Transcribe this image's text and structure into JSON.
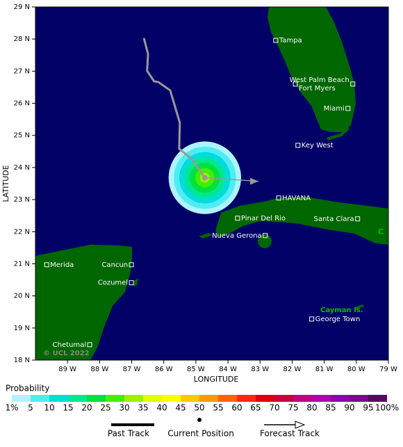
{
  "map": {
    "xlabel": "LONGITUDE",
    "ylabel": "LATITUDE",
    "xlim": [
      -90,
      -79
    ],
    "ylim": [
      18,
      29
    ],
    "xticks": [
      {
        "value": -89,
        "label": "89 W"
      },
      {
        "value": -88,
        "label": "88 W"
      },
      {
        "value": -87,
        "label": "87 W"
      },
      {
        "value": -86,
        "label": "86 W"
      },
      {
        "value": -85,
        "label": "85 W"
      },
      {
        "value": -84,
        "label": "84 W"
      },
      {
        "value": -83,
        "label": "83 W"
      },
      {
        "value": -82,
        "label": "82 W"
      },
      {
        "value": -81,
        "label": "81 W"
      },
      {
        "value": -80,
        "label": "80 W"
      },
      {
        "value": -79,
        "label": "79 W"
      }
    ],
    "yticks": [
      {
        "value": 18,
        "label": "18 N"
      },
      {
        "value": 19,
        "label": "19 N"
      },
      {
        "value": 20,
        "label": "20 N"
      },
      {
        "value": 21,
        "label": "21 N"
      },
      {
        "value": 22,
        "label": "22 N"
      },
      {
        "value": 23,
        "label": "23 N"
      },
      {
        "value": 24,
        "label": "24 N"
      },
      {
        "value": 25,
        "label": "25 N"
      },
      {
        "value": 26,
        "label": "26 N"
      },
      {
        "value": 27,
        "label": "27 N"
      },
      {
        "value": 28,
        "label": "28 N"
      },
      {
        "value": 29,
        "label": "29 N"
      }
    ],
    "cities": [
      {
        "name": "Tampa",
        "lon": -82.51,
        "lat": 27.96
      },
      {
        "name": "West Palm Beach",
        "lon": -80.11,
        "lat": 26.6
      },
      {
        "name": "Fort Myers",
        "lon": -81.9,
        "lat": 26.6
      },
      {
        "name": "Miami",
        "lon": -80.26,
        "lat": 25.84
      },
      {
        "name": "Key West",
        "lon": -81.82,
        "lat": 24.69
      },
      {
        "name": "HAVANA",
        "lon": -82.42,
        "lat": 23.05
      },
      {
        "name": "Pinar Del Rio",
        "lon": -83.7,
        "lat": 22.42
      },
      {
        "name": "Santa Clara",
        "lon": -79.96,
        "lat": 22.4
      },
      {
        "name": "Nueva Gerona",
        "lon": -82.84,
        "lat": 21.88
      },
      {
        "name": "Merida",
        "lon": -89.65,
        "lat": 20.97
      },
      {
        "name": "Cancun",
        "lon": -87.01,
        "lat": 20.97
      },
      {
        "name": "Cozumel",
        "lon": -87.01,
        "lat": 20.41
      },
      {
        "name": "Chetumal",
        "lon": -88.31,
        "lat": 18.48
      },
      {
        "name": "George Town",
        "lon": -81.39,
        "lat": 19.28
      }
    ],
    "regions": [
      "Cayman Is.",
      "C"
    ],
    "watermark": "© UCL 2022",
    "past_track": {
      "lon": [
        -86.62,
        -86.49,
        -86.52,
        -86.3,
        -86.17,
        -85.8,
        -85.5,
        -85.52,
        -85.13,
        -84.72
      ],
      "lat": [
        28.03,
        27.53,
        27.01,
        26.68,
        26.66,
        26.4,
        25.39,
        24.58,
        24.27,
        23.68
      ]
    },
    "current_position": {
      "lon": -84.72,
      "lat": 23.68
    },
    "forecast_track": {
      "lon": [
        -84.72,
        -83.05
      ],
      "lat": [
        23.68,
        23.57
      ]
    },
    "probability_rings": [
      {
        "probability": 1,
        "radius": 1.13
      },
      {
        "probability": 5,
        "radius": 0.97
      },
      {
        "probability": 10,
        "radius": 0.8
      },
      {
        "probability": 15,
        "radius": 0.63
      },
      {
        "probability": 20,
        "radius": 0.47
      },
      {
        "probability": 25,
        "radius": 0.3
      },
      {
        "probability": 30,
        "radius": 0.15
      }
    ]
  },
  "legend": {
    "title": "Probability",
    "levels": [
      {
        "value": 1,
        "label": "1%"
      },
      5,
      10,
      15,
      20,
      25,
      30,
      35,
      40,
      45,
      50,
      55,
      60,
      65,
      70,
      75,
      80,
      85,
      90,
      95,
      {
        "value": 100,
        "label": "100%"
      }
    ],
    "colors": [
      "#aef4ff",
      "#50ecf4",
      "#00dcdc",
      "#00e890",
      "#00e040",
      "#40f000",
      "#a0f000",
      "#e0ff00",
      "#ffff00",
      "#ffc800",
      "#ff9600",
      "#ff6400",
      "#ff2800",
      "#e00000",
      "#c80040",
      "#c00080",
      "#b000b0",
      "#9000b0",
      "#800090",
      "#600060"
    ],
    "keys": [
      "Past Track",
      "Current Position",
      "Forecast Track"
    ]
  }
}
